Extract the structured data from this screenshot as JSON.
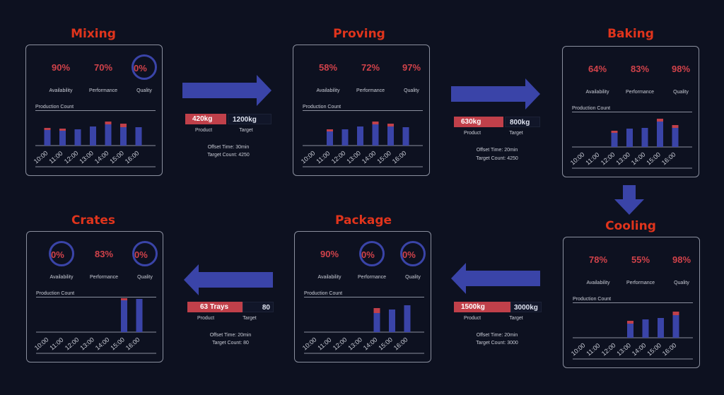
{
  "stations": [
    {
      "id": "mixing",
      "title": "Mixing",
      "availability": "90%",
      "performance": "70%",
      "quality": "0%",
      "rings": [
        false,
        false,
        true
      ],
      "chart_label": "Production Count",
      "chart_data": {
        "type": "bar",
        "categories": [
          "10:00",
          "11:00",
          "12:00",
          "13:00",
          "14:00",
          "15:00",
          "16:00"
        ],
        "series": [
          {
            "values": [
              22,
              21,
              23,
              27,
              30,
              26,
              26
            ]
          },
          {
            "values": [
              3,
              3,
              0,
              0,
              4,
              5,
              0
            ]
          }
        ]
      }
    },
    {
      "id": "proving",
      "title": "Proving",
      "availability": "58%",
      "performance": "72%",
      "quality": "97%",
      "rings": [
        false,
        false,
        false
      ],
      "chart_label": "Production Count",
      "chart_data": {
        "type": "bar",
        "categories": [
          "10:00",
          "11:00",
          "12:00",
          "13:00",
          "14:00",
          "15:00",
          "16:00"
        ],
        "series": [
          {
            "values": [
              0,
              20,
              23,
              27,
              30,
              27,
              26
            ]
          },
          {
            "values": [
              0,
              3,
              0,
              0,
              4,
              4,
              0
            ]
          }
        ]
      }
    },
    {
      "id": "baking",
      "title": "Baking",
      "availability": "64%",
      "performance": "83%",
      "quality": "98%",
      "rings": [
        false,
        false,
        false
      ],
      "chart_label": "Production Count",
      "chart_data": {
        "type": "bar",
        "categories": [
          "10:00",
          "11:00",
          "12:00",
          "13:00",
          "14:00",
          "15:00",
          "16:00"
        ],
        "series": [
          {
            "values": [
              0,
              0,
              20,
              26,
              27,
              36,
              27
            ]
          },
          {
            "values": [
              0,
              0,
              3,
              0,
              0,
              4,
              4
            ]
          }
        ]
      }
    },
    {
      "id": "cooling",
      "title": "Cooling",
      "availability": "78%",
      "performance": "55%",
      "quality": "98%",
      "rings": [
        false,
        false,
        false
      ],
      "chart_label": "Production Count",
      "chart_data": {
        "type": "bar",
        "categories": [
          "10:00",
          "11:00",
          "12:00",
          "13:00",
          "14:00",
          "15:00",
          "16:00"
        ],
        "series": [
          {
            "values": [
              0,
              0,
              0,
              20,
              26,
              28,
              32
            ]
          },
          {
            "values": [
              0,
              0,
              0,
              4,
              0,
              0,
              5
            ]
          }
        ]
      }
    },
    {
      "id": "package",
      "title": "Package",
      "availability": "90%",
      "performance": "0%",
      "quality": "0%",
      "rings": [
        false,
        true,
        true
      ],
      "chart_label": "Production Count",
      "chart_data": {
        "type": "bar",
        "categories": [
          "10:00",
          "11:00",
          "12:00",
          "13:00",
          "14:00",
          "15:00",
          "16:00"
        ],
        "series": [
          {
            "values": [
              0,
              0,
              0,
              0,
              27,
              32,
              38
            ]
          },
          {
            "values": [
              0,
              0,
              0,
              0,
              7,
              0,
              0
            ]
          }
        ]
      }
    },
    {
      "id": "crates",
      "title": "Crates",
      "availability": "0%",
      "performance": "83%",
      "quality": "0%",
      "rings": [
        true,
        false,
        true
      ],
      "chart_label": "Production Count",
      "chart_data": {
        "type": "bar",
        "categories": [
          "10:00",
          "11:00",
          "12:00",
          "13:00",
          "14:00",
          "15:00",
          "16:00"
        ],
        "series": [
          {
            "values": [
              0,
              0,
              0,
              0,
              0,
              45,
              47
            ]
          },
          {
            "values": [
              0,
              0,
              0,
              0,
              0,
              10,
              0
            ]
          }
        ]
      }
    }
  ],
  "metric_labels": {
    "availability": "Availability",
    "performance": "Performance",
    "quality": "Quality"
  },
  "transfers": [
    {
      "product": "420kg",
      "target": "1200kg",
      "product_label": "Product",
      "target_label": "Target",
      "offset": "Offset Time: 30min",
      "count": "Target Count: 4250"
    },
    {
      "product": "630kg",
      "target": "800kg",
      "product_label": "Product",
      "target_label": "Target",
      "offset": "Offset Time: 20min",
      "count": "Target Count: 4250"
    },
    {
      "product": "1500kg",
      "target": "3000kg",
      "product_label": "Product",
      "target_label": "Target",
      "offset": "Offset Time: 20min",
      "count": "Target Count: 3000"
    },
    {
      "product": "63 Trays",
      "target": "80",
      "product_label": "Product",
      "target_label": "Target",
      "offset": "Offset Time: 20min",
      "count": "Target Count: 80"
    }
  ],
  "colors": {
    "bar": "#3a44a8",
    "defect": "#c0404a",
    "arrow": "#3a44a8",
    "title": "#e0341c"
  }
}
